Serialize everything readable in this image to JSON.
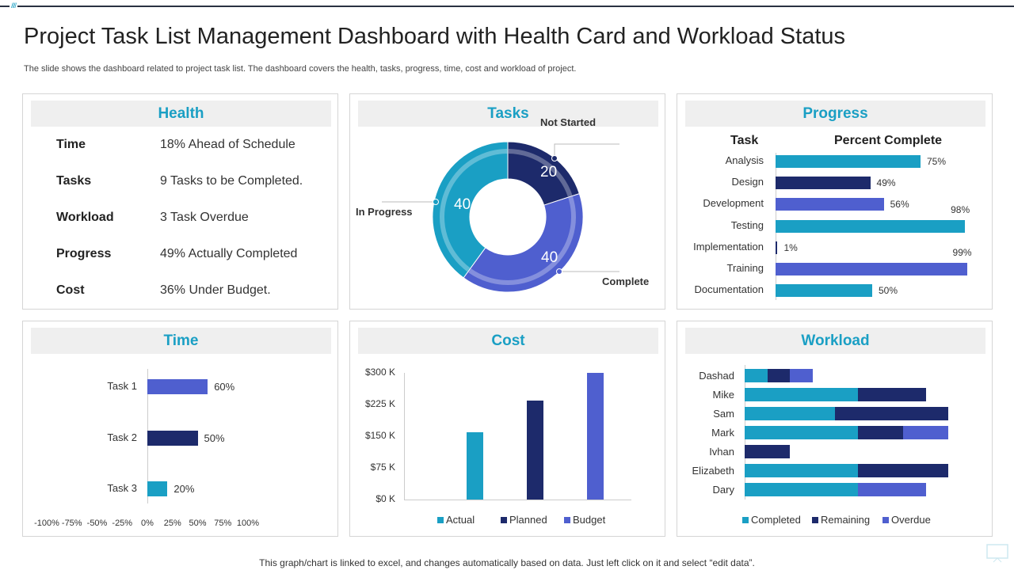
{
  "title": "Project Task List Management Dashboard with Health Card and Workload Status",
  "subtitle": "The slide shows the dashboard related to project task list. The dashboard covers the health, tasks, progress, time, cost and workload of project.",
  "footer": "This graph/chart is linked to excel,  and changes automatically based on data. Just left click on it and select “edit data”.",
  "colors": {
    "accent": "#1a9fc4",
    "navy": "#1d2a6b",
    "blue": "#4f5fcf"
  },
  "health": {
    "title": "Health",
    "rows": [
      {
        "label": "Time",
        "value": "18% Ahead of Schedule"
      },
      {
        "label": "Tasks",
        "value": "9 Tasks to be Completed."
      },
      {
        "label": "Workload",
        "value": "3 Task Overdue"
      },
      {
        "label": "Progress",
        "value": "49% Actually  Completed"
      },
      {
        "label": "Cost",
        "value": "36% Under Budget."
      }
    ]
  },
  "chart_data": [
    {
      "type": "pie",
      "title": "Tasks",
      "donut": true,
      "slices": [
        {
          "name": "Not Started",
          "value": 20,
          "color": "#1d2a6b"
        },
        {
          "name": "Complete",
          "value": 40,
          "color": "#4f5fcf"
        },
        {
          "name": "In Progress",
          "value": 40,
          "color": "#1a9fc4"
        }
      ]
    },
    {
      "type": "bar",
      "orientation": "horizontal",
      "title": "Progress",
      "col_headers": [
        "Task",
        "Percent Complete"
      ],
      "categories": [
        "Analysis",
        "Design",
        "Development",
        "Testing",
        "Implementation",
        "Training",
        "Documentation"
      ],
      "values": [
        75,
        49,
        56,
        98,
        1,
        99,
        50
      ],
      "labels": [
        "75%",
        "49%",
        "56%",
        "98%",
        "1%",
        "99%",
        "50%"
      ],
      "colors": [
        "#1a9fc4",
        "#1d2a6b",
        "#4f5fcf",
        "#1a9fc4",
        "#1d2a6b",
        "#4f5fcf",
        "#1a9fc4"
      ],
      "xlim": [
        0,
        100
      ]
    },
    {
      "type": "bar",
      "orientation": "horizontal",
      "title": "Time",
      "categories": [
        "Task 1",
        "Task 2",
        "Task 3"
      ],
      "values": [
        60,
        50,
        20
      ],
      "labels": [
        "60%",
        "50%",
        "20%"
      ],
      "colors": [
        "#4f5fcf",
        "#1d2a6b",
        "#1a9fc4"
      ],
      "xlim": [
        -100,
        100
      ],
      "xticks": [
        "-100%",
        "-75%",
        "-50%",
        "-25%",
        "0%",
        "25%",
        "50%",
        "75%",
        "100%"
      ]
    },
    {
      "type": "bar",
      "title": "Cost",
      "categories": [
        "Actual",
        "Planned",
        "Budget"
      ],
      "values": [
        160,
        235,
        300
      ],
      "colors": [
        "#1a9fc4",
        "#1d2a6b",
        "#4f5fcf"
      ],
      "ylim": [
        0,
        300
      ],
      "yticks": [
        "$0 K",
        "$75 K",
        "$150 K",
        "$225 K",
        "$300 K"
      ],
      "legend": "bottom"
    },
    {
      "type": "bar",
      "orientation": "horizontal",
      "stacked": true,
      "title": "Workload",
      "categories": [
        "Dashad",
        "Mike",
        "Sam",
        "Mark",
        "Ivhan",
        "Elizabeth",
        "Dary"
      ],
      "series": [
        {
          "name": "Completed",
          "values": [
            1,
            5,
            4,
            5,
            0,
            5,
            5
          ],
          "color": "#1a9fc4"
        },
        {
          "name": "Remaining",
          "values": [
            1,
            3,
            5,
            2,
            2,
            4,
            0
          ],
          "color": "#1d2a6b"
        },
        {
          "name": "Overdue",
          "values": [
            1,
            0,
            0,
            2,
            0,
            0,
            3
          ],
          "color": "#4f5fcf"
        }
      ],
      "xlim": [
        0,
        9
      ],
      "legend": "bottom"
    }
  ]
}
